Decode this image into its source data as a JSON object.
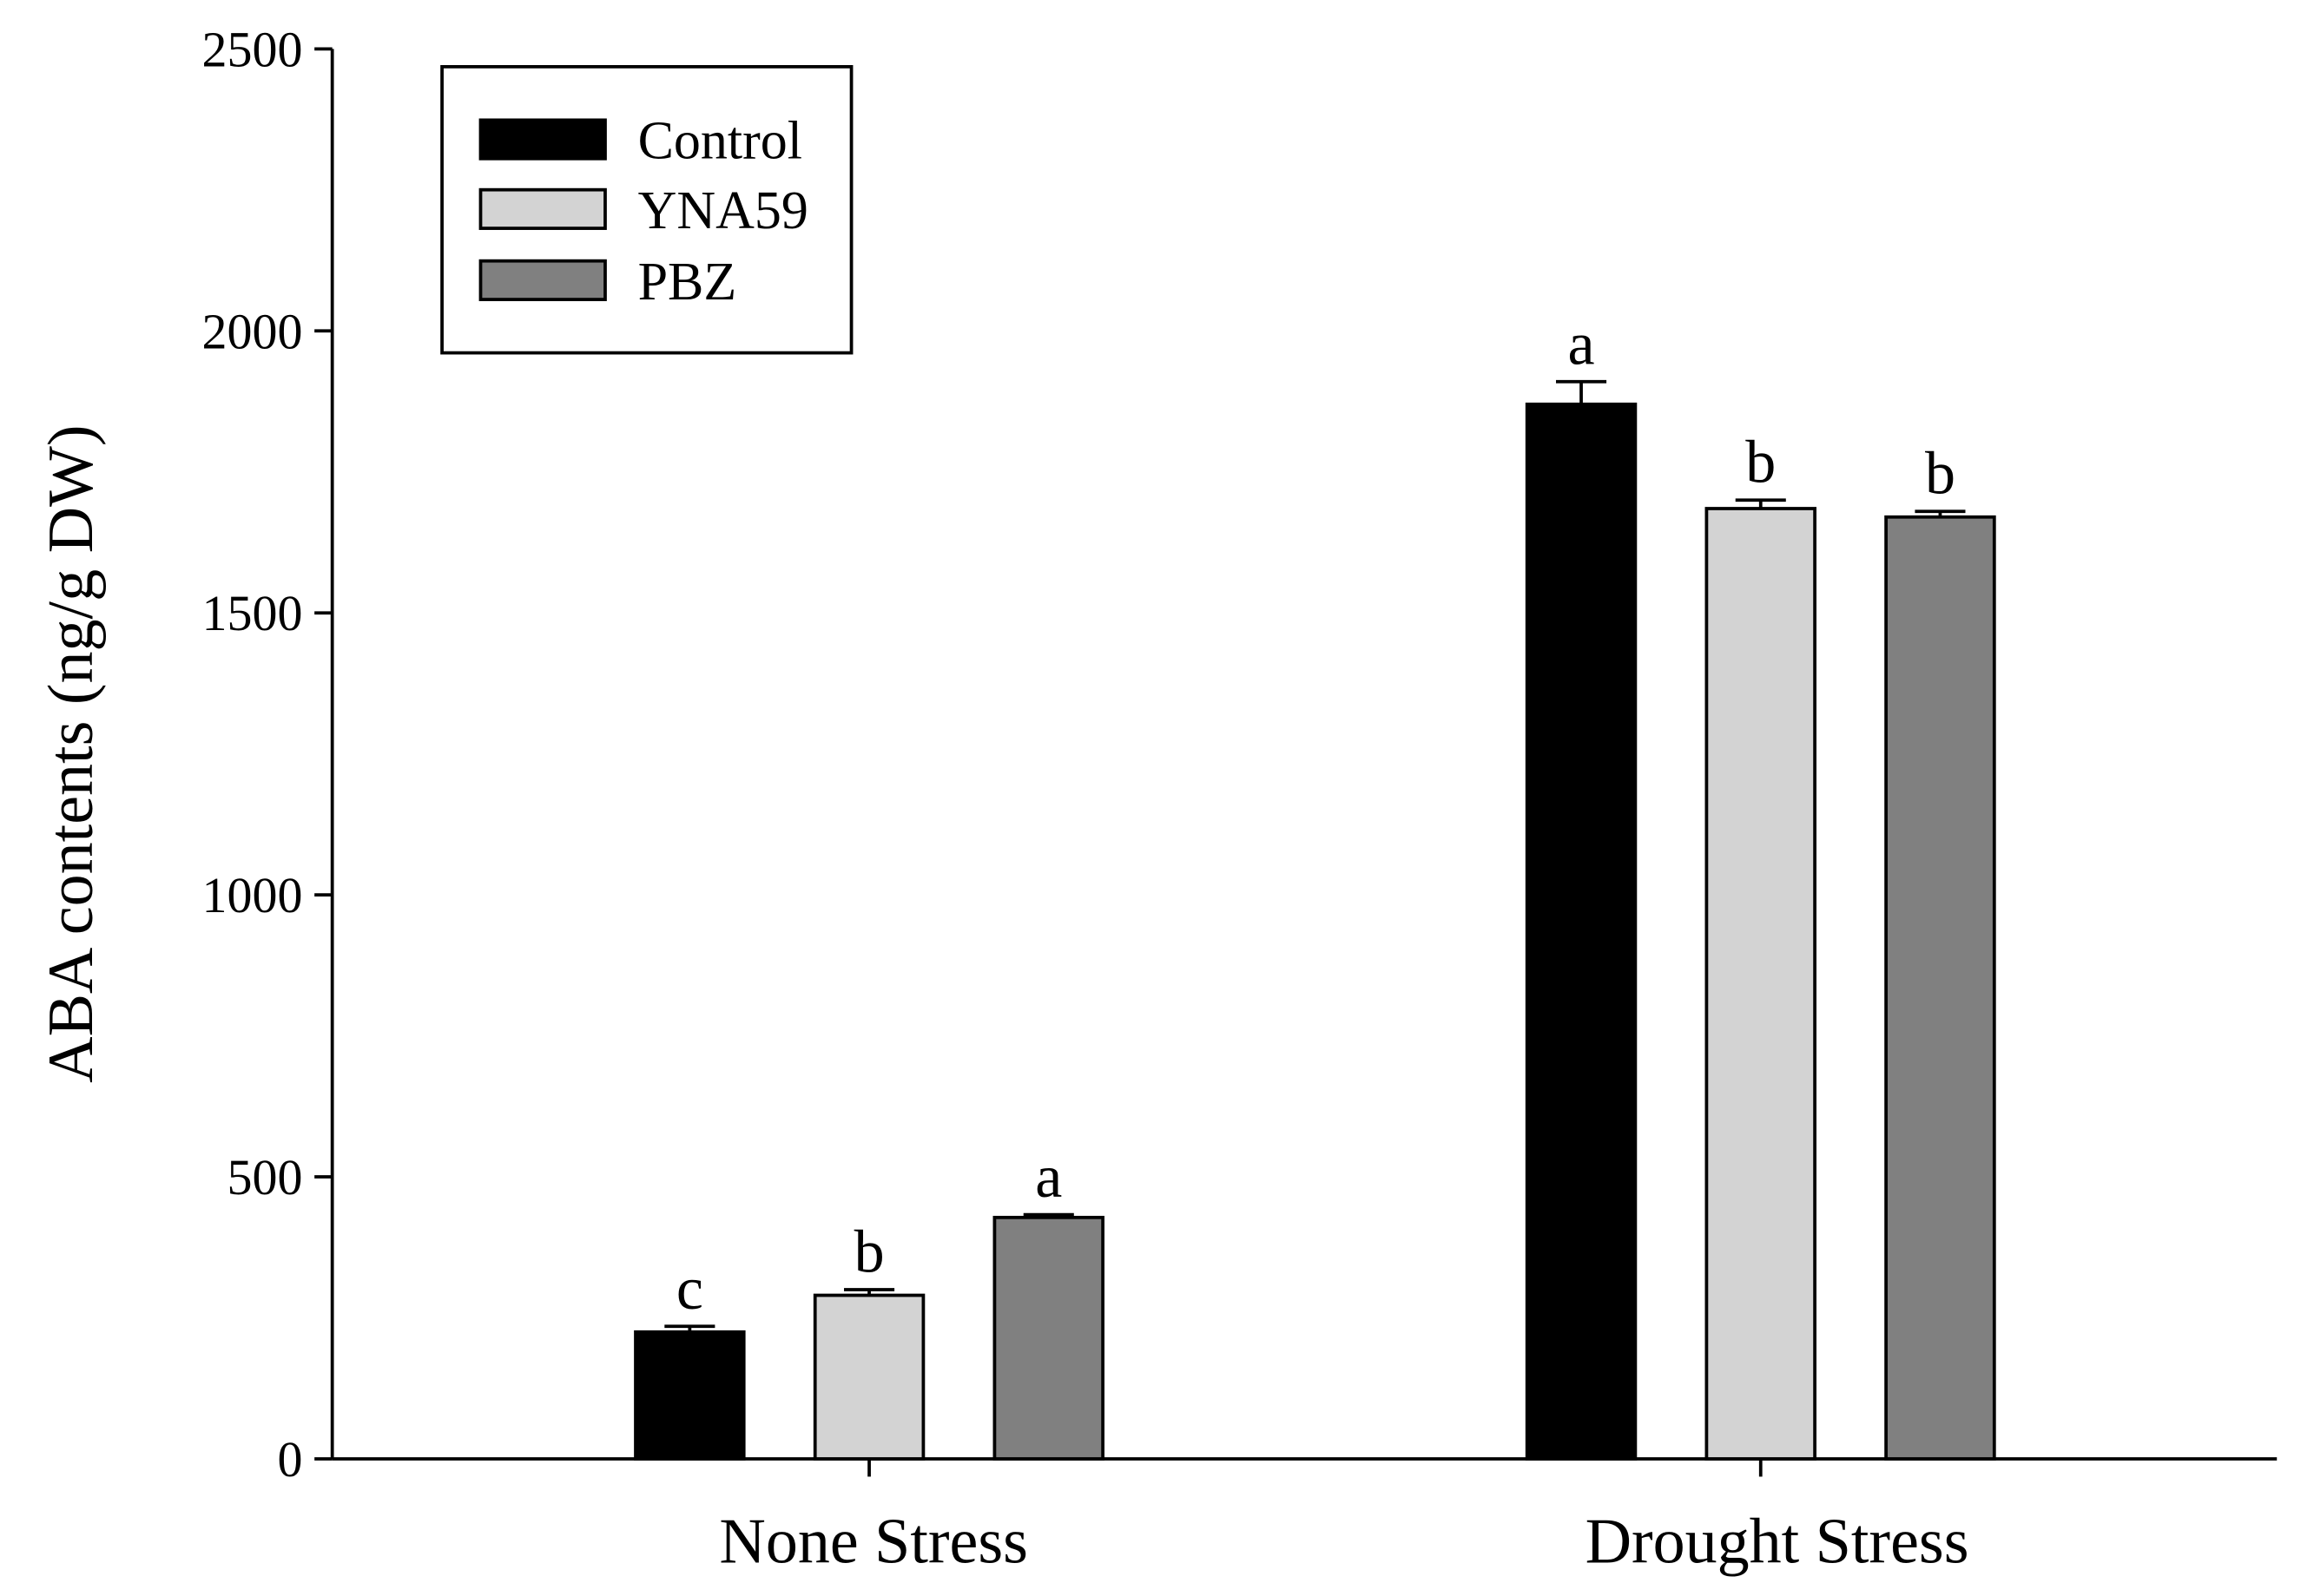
{
  "chart_data": {
    "type": "bar",
    "title": "",
    "xlabel": "",
    "ylabel": "ABA contents (ng/g DW)",
    "ylim": [
      0,
      2500
    ],
    "yticks": [
      0,
      500,
      1000,
      1500,
      2000,
      2500
    ],
    "grid": false,
    "legend_position": "top-left",
    "categories": [
      "None Stress",
      "Drought Stress"
    ],
    "series": [
      {
        "name": "Control",
        "color": "#000000",
        "values": [
          225,
          1870
        ],
        "errors": [
          10,
          40
        ],
        "labels": [
          "c",
          "a"
        ]
      },
      {
        "name": "YNA59",
        "color": "#d3d3d3",
        "values": [
          290,
          1685
        ],
        "errors": [
          10,
          15
        ],
        "labels": [
          "b",
          "b"
        ]
      },
      {
        "name": "PBZ",
        "color": "#808080",
        "values": [
          428,
          1670
        ],
        "errors": [
          5,
          10
        ],
        "labels": [
          "a",
          "b"
        ]
      }
    ]
  }
}
